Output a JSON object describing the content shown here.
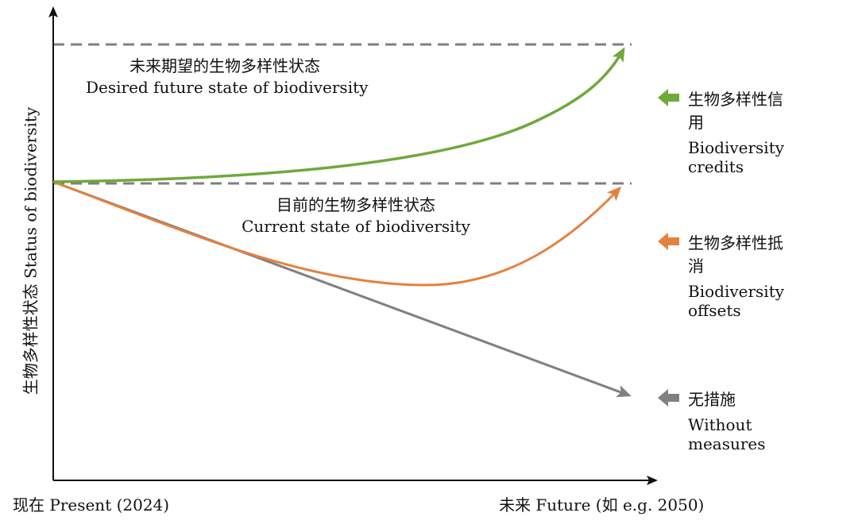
{
  "diagram": {
    "y_axis_title": "生物多样性状态 Status of biodiversity",
    "x_axis": {
      "start_label": "现在 Present (2024)",
      "end_label": "未来 Future (如 e.g. 2050)"
    },
    "reference_lines": {
      "desired": {
        "label_zh": "未来期望的生物多样性状态",
        "label_en": "Desired future state of biodiversity"
      },
      "current": {
        "label_zh": "目前的生物多样性状态",
        "label_en": "Current state of biodiversity"
      }
    },
    "legend": [
      {
        "id": "credits",
        "label_zh": "生物多样性信用",
        "label_en": "Biodiversity credits",
        "color": "#70a83c"
      },
      {
        "id": "offsets",
        "label_zh": "生物多样性抵消",
        "label_en": "Biodiversity offsets",
        "color": "#e5813e"
      },
      {
        "id": "none",
        "label_zh": "无措施",
        "label_en": "Without measures",
        "color": "#808080"
      }
    ],
    "colors": {
      "axis": "#111111",
      "dashed_line": "#7f7f7f",
      "credits": "#70a83c",
      "offsets": "#e5813e",
      "none": "#808080"
    }
  }
}
